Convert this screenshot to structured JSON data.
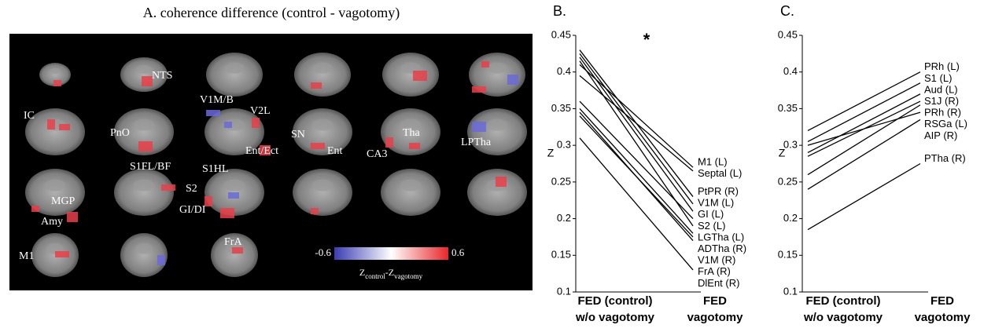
{
  "panel_a": {
    "title": "A. coherence difference (control - vagotomy)",
    "labels": [
      "NTS",
      "V1M/B",
      "V2L",
      "IC",
      "PnO",
      "SN",
      "Tha",
      "LPTha",
      "Ent/Ect",
      "Ent",
      "CA3",
      "S1FL/BF",
      "S1HL",
      "MGP",
      "S2",
      "GI/DI",
      "Amy",
      "M1",
      "FrA"
    ],
    "colorbar": {
      "lim": [
        -0.6,
        0.6
      ],
      "label": [
        "Z",
        "control",
        "-Z",
        "vagotomy"
      ],
      "colors": [
        "#3b3bb3",
        "#ffffff",
        "#e8262b"
      ]
    }
  },
  "chart_data": [
    {
      "type": "slope",
      "title": "B.",
      "ylabel": "Z",
      "annotation": "*",
      "color": "#000000",
      "categories": [
        [
          "FED (control)",
          "w/o vagotomy"
        ],
        [
          "FED",
          "vagotomy"
        ]
      ],
      "ylim": [
        0.1,
        0.45
      ],
      "yticks": [
        0.1,
        0.15,
        0.2,
        0.25,
        0.3,
        0.35,
        0.4,
        0.45
      ],
      "series": [
        {
          "name": "M1 (L)",
          "values": [
            0.41,
            0.27
          ]
        },
        {
          "name": "Septal (L)",
          "values": [
            0.395,
            0.265
          ]
        },
        {
          "name": "PtPR (R)",
          "values": [
            0.43,
            0.23
          ]
        },
        {
          "name": "V1M (L)",
          "values": [
            0.425,
            0.22
          ]
        },
        {
          "name": "GI (L)",
          "values": [
            0.42,
            0.21
          ]
        },
        {
          "name": "S2 (L)",
          "values": [
            0.36,
            0.2
          ]
        },
        {
          "name": "LGTha (L)",
          "values": [
            0.415,
            0.19
          ]
        },
        {
          "name": "ADTha (R)",
          "values": [
            0.35,
            0.18
          ]
        },
        {
          "name": "V1M (R)",
          "values": [
            0.34,
            0.175
          ]
        },
        {
          "name": "FrA (R)",
          "values": [
            0.345,
            0.17
          ]
        },
        {
          "name": "DlEnt (R)",
          "values": [
            0.31,
            0.13
          ]
        }
      ]
    },
    {
      "type": "slope",
      "title": "C.",
      "ylabel": "Z",
      "color": "#000000",
      "categories": [
        [
          "FED (control)",
          "w/o vagotomy"
        ],
        [
          "FED",
          "vagotomy"
        ]
      ],
      "ylim": [
        0.1,
        0.45
      ],
      "yticks": [
        0.1,
        0.15,
        0.2,
        0.25,
        0.3,
        0.35,
        0.4,
        0.45
      ],
      "series": [
        {
          "name": "PRh (L)",
          "values": [
            0.32,
            0.4
          ]
        },
        {
          "name": "S1 (L)",
          "values": [
            0.305,
            0.385
          ]
        },
        {
          "name": "Aud (L)",
          "values": [
            0.29,
            0.37
          ]
        },
        {
          "name": "S1J (R)",
          "values": [
            0.285,
            0.36
          ]
        },
        {
          "name": "PRh (R)",
          "values": [
            0.26,
            0.355
          ]
        },
        {
          "name": "RSGa (L)",
          "values": [
            0.3,
            0.345
          ]
        },
        {
          "name": "AIP (R)",
          "values": [
            0.24,
            0.335
          ]
        },
        {
          "name": "PTha (R)",
          "values": [
            0.185,
            0.275
          ]
        }
      ]
    }
  ]
}
